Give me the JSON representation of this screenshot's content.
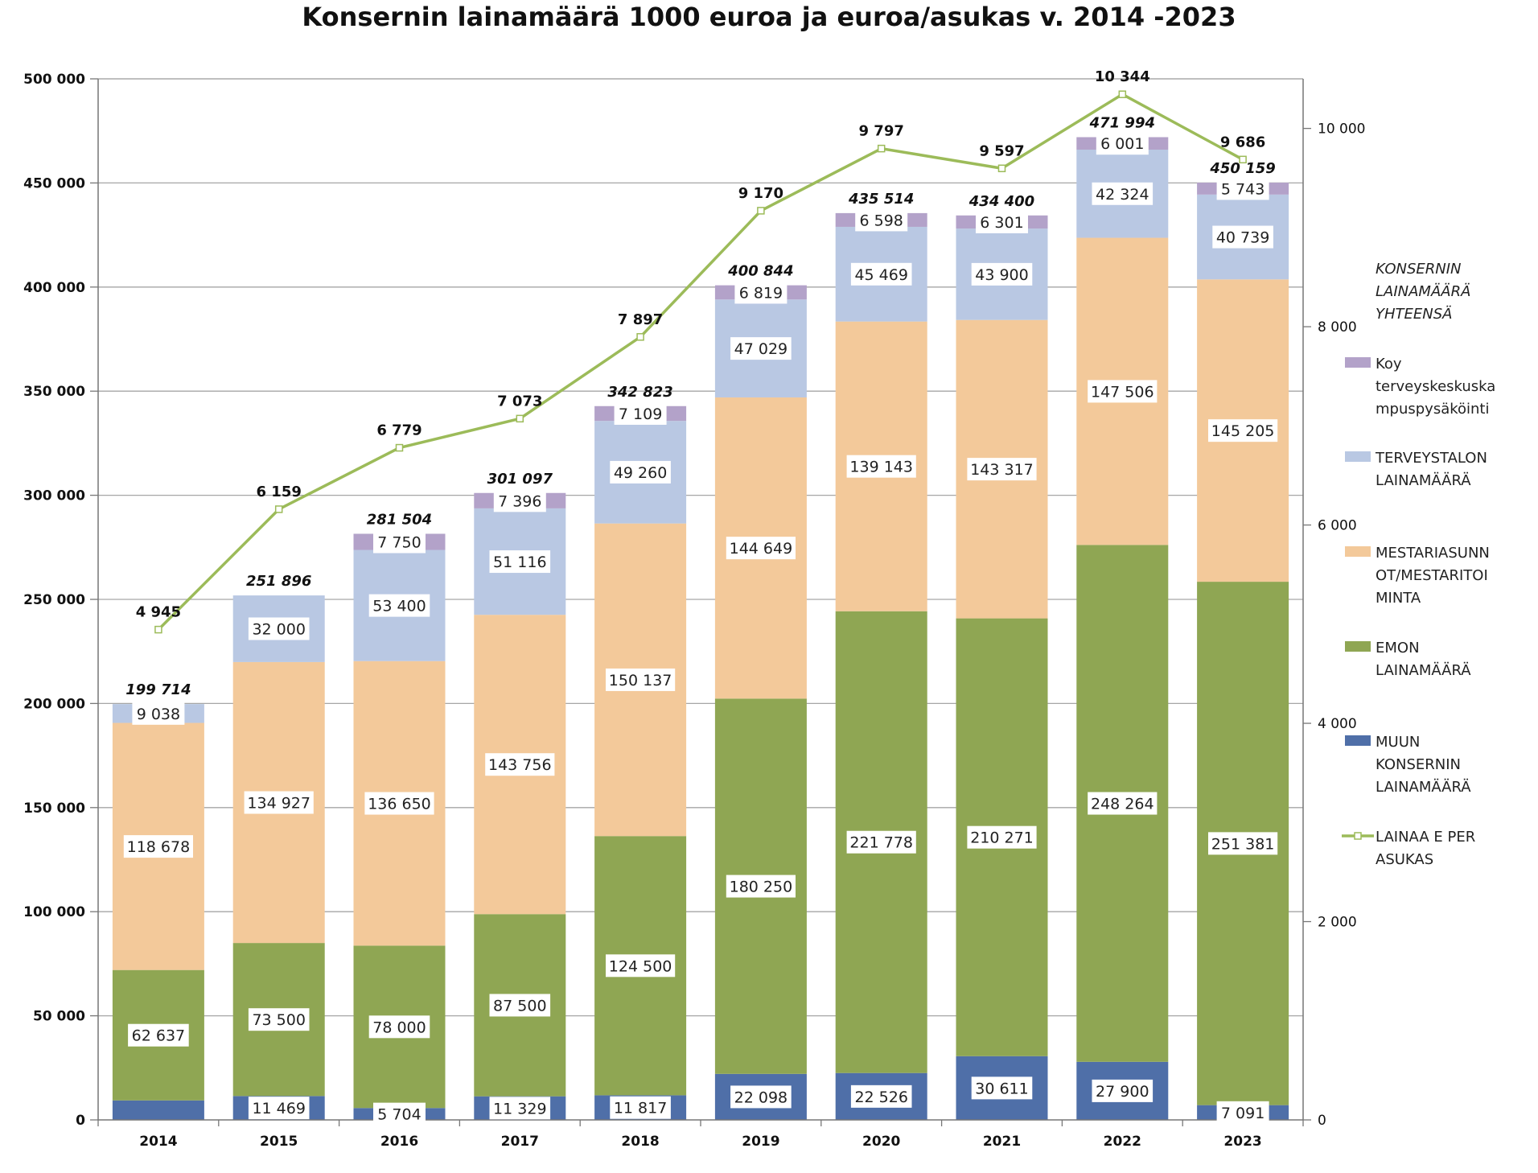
{
  "chart_data": {
    "type": "bar",
    "stacked": true,
    "title": "Konsernin lainamäärä 1000 euroa ja euroa/asukas v. 2014 -2023",
    "categories": [
      "2014",
      "2015",
      "2016",
      "2017",
      "2018",
      "2019",
      "2020",
      "2021",
      "2022",
      "2023"
    ],
    "ylim": [
      0,
      500000
    ],
    "yticks": [
      "0",
      "50 000",
      "100 000",
      "150 000",
      "200 000",
      "250 000",
      "300 000",
      "350 000",
      "400 000",
      "450 000",
      "500 000"
    ],
    "y2lim": [
      0,
      10500
    ],
    "y2ticks": [
      "0",
      "2 000",
      "4 000",
      "6 000",
      "8 000",
      "10 000"
    ],
    "series": [
      {
        "name": "MUUN KONSERNIN LAINAMÄÄRÄ",
        "legend_lines": [
          "MUUN",
          "KONSERNIN",
          "LAINAMÄÄRÄ"
        ],
        "color": "#4f6fa8",
        "values": [
          9361,
          11469,
          5704,
          11329,
          11817,
          22098,
          22526,
          30611,
          27900,
          7091
        ],
        "labels": [
          "",
          "11 469",
          "5 704",
          "11 329",
          "11 817",
          "22 098",
          "22 526",
          "30 611",
          "27 900",
          "7 091"
        ]
      },
      {
        "name": "EMON LAINAMÄÄRÄ",
        "legend_lines": [
          "EMON",
          "LAINAMÄÄRÄ"
        ],
        "color": "#8fa653",
        "values": [
          62637,
          73500,
          78000,
          87500,
          124500,
          180250,
          221778,
          210271,
          248264,
          251381
        ],
        "labels": [
          "62 637",
          "73 500",
          "78 000",
          "87 500",
          "124 500",
          "180 250",
          "221 778",
          "210 271",
          "248 264",
          "251 381"
        ]
      },
      {
        "name": "MESTARIASUNNOT/MESTARITOIMINTA",
        "legend_lines": [
          "MESTARIASUNN",
          "OT/MESTARITOI",
          "MINTA"
        ],
        "color": "#f3c99a",
        "values": [
          118678,
          134927,
          136650,
          143756,
          150137,
          144649,
          139143,
          143317,
          147506,
          145205
        ],
        "labels": [
          "118 678",
          "134 927",
          "136 650",
          "143 756",
          "150 137",
          "144 649",
          "139 143",
          "143 317",
          "147 506",
          "145 205"
        ]
      },
      {
        "name": "TERVEYSTALON LAINAMÄÄRÄ",
        "legend_lines": [
          "TERVEYSTALON",
          "LAINAMÄÄRÄ"
        ],
        "color": "#b9c8e3",
        "values": [
          9038,
          32000,
          53400,
          51116,
          49260,
          47029,
          45469,
          43900,
          42324,
          40739
        ],
        "labels": [
          "9 038",
          "32 000",
          "53 400",
          "51 116",
          "49 260",
          "47 029",
          "45 469",
          "43 900",
          "42 324",
          "40 739"
        ]
      },
      {
        "name": "Koy terveyskeskuskampuspysäköinti",
        "legend_lines": [
          "Koy",
          "terveyskeskuska",
          "mpuspysäköinti"
        ],
        "color": "#b3a2c9",
        "values": [
          0,
          0,
          7750,
          7396,
          7109,
          6819,
          6598,
          6301,
          6001,
          5743
        ],
        "labels": [
          "",
          "",
          "7 750",
          "7 396",
          "7 109",
          "6 819",
          "6 598",
          "6 301",
          "6 001",
          "5 743"
        ]
      }
    ],
    "totals": {
      "name": "KONSERNIN LAINAMÄÄRÄ YHTEENSÄ",
      "legend_lines": [
        "KONSERNIN",
        "LAINAMÄÄRÄ",
        "YHTEENSÄ"
      ],
      "values": [
        199714,
        251896,
        281504,
        301097,
        342823,
        400844,
        435514,
        434400,
        471994,
        450159
      ],
      "labels": [
        "199 714",
        "251 896",
        "281 504",
        "301 097",
        "342 823",
        "400 844",
        "435 514",
        "434 400",
        "471 994",
        "450 159"
      ]
    },
    "line": {
      "name": "LAINAA E PER ASUKAS",
      "legend_lines": [
        "LAINAA E PER",
        "ASUKAS"
      ],
      "axis": "right",
      "color": "#9cbb59",
      "values": [
        4945,
        6159,
        6779,
        7073,
        7897,
        9170,
        9797,
        9597,
        10344,
        9686
      ],
      "labels": [
        "4 945",
        "6 159",
        "6 779",
        "7 073",
        "7 897",
        "9 170",
        "9 797",
        "9 597",
        "10 344",
        "9 686"
      ]
    },
    "legend_position": "right"
  }
}
